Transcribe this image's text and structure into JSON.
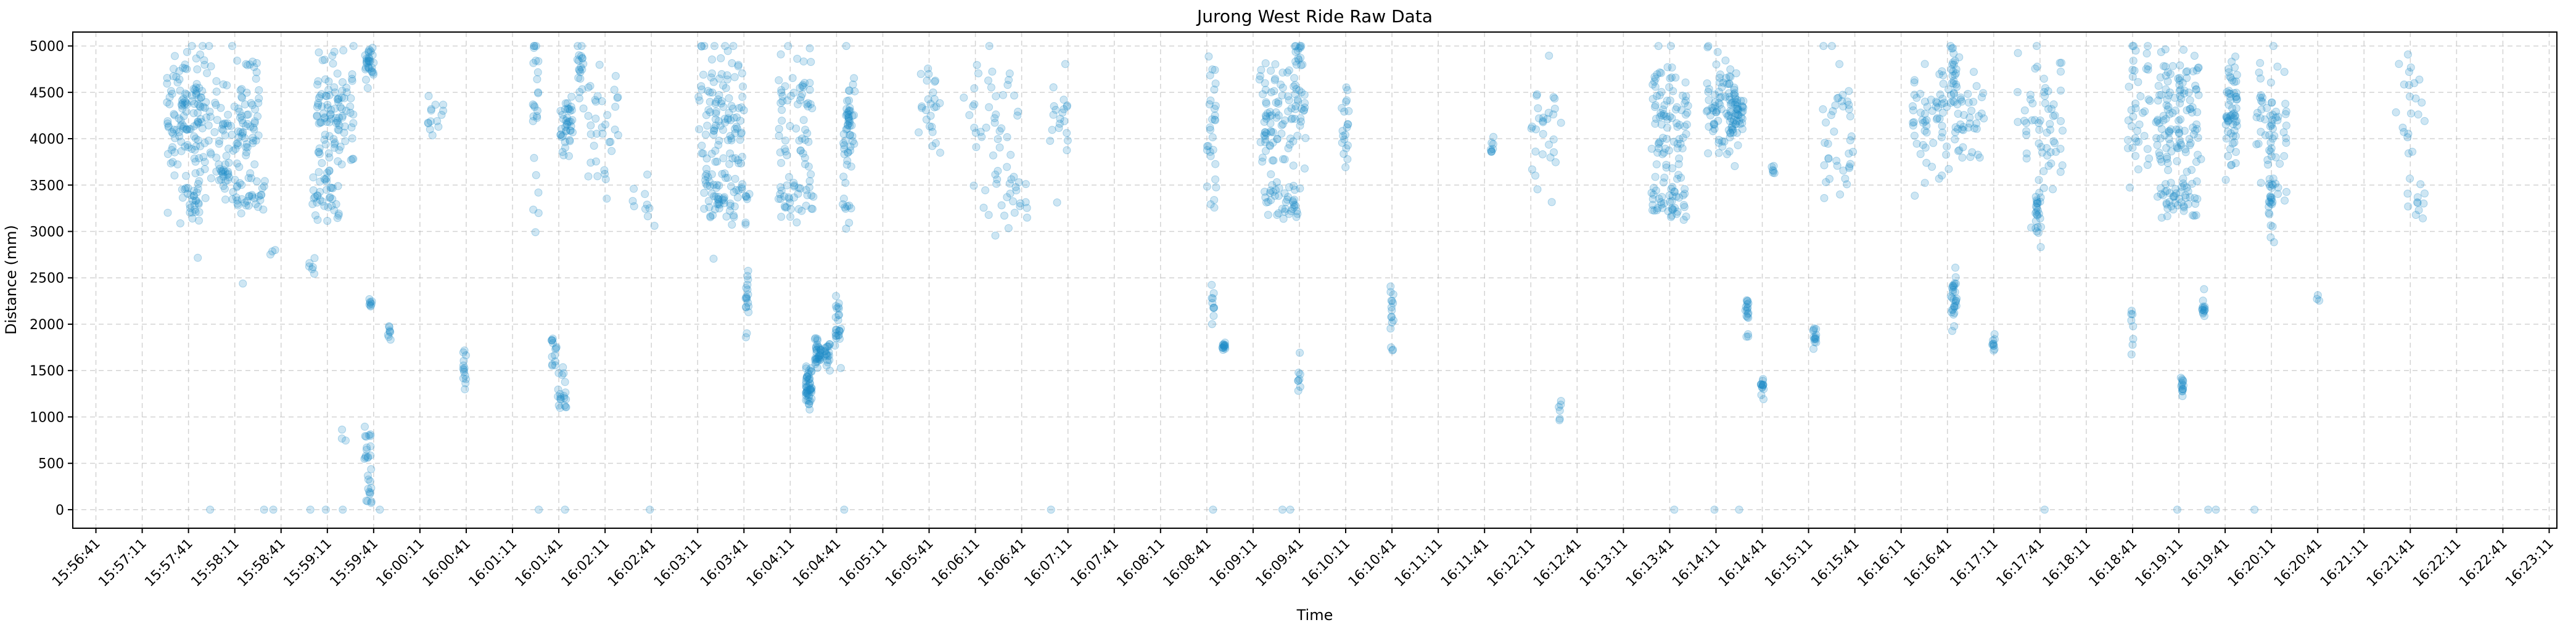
{
  "chart_data": {
    "type": "scatter",
    "title": "Jurong West Ride Raw Data",
    "xlabel": "Time",
    "ylabel": "Distance (mm)",
    "x_ticks": [
      "15:56:41",
      "15:57:11",
      "15:57:41",
      "15:58:11",
      "15:58:41",
      "15:59:11",
      "15:59:41",
      "16:00:11",
      "16:00:41",
      "16:01:11",
      "16:01:41",
      "16:02:11",
      "16:02:41",
      "16:03:11",
      "16:03:41",
      "16:04:11",
      "16:04:41",
      "16:05:11",
      "16:05:41",
      "16:06:11",
      "16:06:41",
      "16:07:11",
      "16:07:41",
      "16:08:11",
      "16:08:41",
      "16:09:11",
      "16:09:41",
      "16:10:11",
      "16:10:41",
      "16:11:11",
      "16:11:41",
      "16:12:11",
      "16:12:41",
      "16:13:11",
      "16:13:41",
      "16:14:11",
      "16:14:41",
      "16:15:11",
      "16:15:41",
      "16:16:11",
      "16:16:41",
      "16:17:11",
      "16:17:41",
      "16:18:11",
      "16:18:41",
      "16:19:11",
      "16:19:41",
      "16:20:11",
      "16:20:41",
      "16:21:11",
      "16:21:41",
      "16:22:11",
      "16:22:41",
      "16:23:11"
    ],
    "y_ticks": [
      0,
      500,
      1000,
      1500,
      2000,
      2500,
      3000,
      3500,
      4000,
      4500,
      5000
    ],
    "ylim": [
      -200,
      5150
    ],
    "xlim": [
      "15:56:26",
      "16:23:16"
    ],
    "grid": true,
    "marker_color": "#1f8cc8",
    "marker_alpha": 0.22,
    "clusters": [
      {
        "t": "15:57:41",
        "dt": 14,
        "y": 4250,
        "sy": 380,
        "n": 140
      },
      {
        "t": "15:57:44",
        "dt": 4,
        "y": 3350,
        "sy": 120,
        "n": 25
      },
      {
        "t": "15:58:11",
        "dt": 16,
        "y": 4200,
        "sy": 420,
        "n": 110
      },
      {
        "t": "15:58:05",
        "dt": 3,
        "y": 3600,
        "sy": 60,
        "n": 14
      },
      {
        "t": "15:58:20",
        "dt": 12,
        "y": 3350,
        "sy": 80,
        "n": 30
      },
      {
        "t": "15:58:36",
        "dt": 2,
        "y": 2750,
        "sy": 30,
        "n": 3
      },
      {
        "t": "15:59:01",
        "dt": 2,
        "y": 2650,
        "sy": 60,
        "n": 6
      },
      {
        "t": "15:59:16",
        "dt": 12,
        "y": 4250,
        "sy": 380,
        "n": 110
      },
      {
        "t": "15:59:10",
        "dt": 10,
        "y": 3350,
        "sy": 120,
        "n": 30
      },
      {
        "t": "15:59:38",
        "dt": 3,
        "y": 4800,
        "sy": 120,
        "n": 30
      },
      {
        "t": "15:59:37",
        "dt": 2,
        "y": 650,
        "sy": 150,
        "n": 14
      },
      {
        "t": "15:59:38",
        "dt": 2,
        "y": 280,
        "sy": 120,
        "n": 14
      },
      {
        "t": "15:59:39",
        "dt": 1,
        "y": 2230,
        "sy": 30,
        "n": 8
      },
      {
        "t": "15:59:51",
        "dt": 1,
        "y": 1930,
        "sy": 60,
        "n": 8
      },
      {
        "t": "15:59:21",
        "dt": 2,
        "y": 780,
        "sy": 30,
        "n": 3
      },
      {
        "t": "16:00:21",
        "dt": 6,
        "y": 4250,
        "sy": 180,
        "n": 14
      },
      {
        "t": "16:00:40",
        "dt": 1,
        "y": 1550,
        "sy": 120,
        "n": 14
      },
      {
        "t": "16:01:26",
        "dt": 2,
        "y": 4250,
        "sy": 500,
        "n": 25
      },
      {
        "t": "16:01:38",
        "dt": 2,
        "y": 1750,
        "sy": 120,
        "n": 14
      },
      {
        "t": "16:01:43",
        "dt": 3,
        "y": 1300,
        "sy": 200,
        "n": 20
      },
      {
        "t": "16:01:46",
        "dt": 4,
        "y": 4150,
        "sy": 200,
        "n": 40
      },
      {
        "t": "16:01:55",
        "dt": 2,
        "y": 4750,
        "sy": 200,
        "n": 20
      },
      {
        "t": "16:02:10",
        "dt": 10,
        "y": 4200,
        "sy": 350,
        "n": 35
      },
      {
        "t": "16:02:36",
        "dt": 8,
        "y": 3300,
        "sy": 150,
        "n": 10
      },
      {
        "t": "16:03:26",
        "dt": 15,
        "y": 4250,
        "sy": 400,
        "n": 110
      },
      {
        "t": "16:03:30",
        "dt": 15,
        "y": 3380,
        "sy": 120,
        "n": 60
      },
      {
        "t": "16:03:43",
        "dt": 1,
        "y": 2250,
        "sy": 130,
        "n": 18
      },
      {
        "t": "16:04:15",
        "dt": 12,
        "y": 4250,
        "sy": 400,
        "n": 60
      },
      {
        "t": "16:04:15",
        "dt": 12,
        "y": 3350,
        "sy": 120,
        "n": 35
      },
      {
        "t": "16:04:23",
        "dt": 2,
        "y": 1300,
        "sy": 100,
        "n": 50
      },
      {
        "t": "16:04:29",
        "dt": 2,
        "y": 1700,
        "sy": 80,
        "n": 35
      },
      {
        "t": "16:04:35",
        "dt": 2,
        "y": 1680,
        "sy": 100,
        "n": 20
      },
      {
        "t": "16:04:42",
        "dt": 2,
        "y": 2000,
        "sy": 180,
        "n": 25
      },
      {
        "t": "16:04:48",
        "dt": 3,
        "y": 3700,
        "sy": 400,
        "n": 30
      },
      {
        "t": "16:04:50",
        "dt": 3,
        "y": 4250,
        "sy": 250,
        "n": 30
      },
      {
        "t": "16:05:41",
        "dt": 8,
        "y": 4300,
        "sy": 300,
        "n": 25
      },
      {
        "t": "16:06:21",
        "dt": 18,
        "y": 4200,
        "sy": 400,
        "n": 40
      },
      {
        "t": "16:06:30",
        "dt": 15,
        "y": 3350,
        "sy": 150,
        "n": 25
      },
      {
        "t": "16:07:05",
        "dt": 6,
        "y": 4250,
        "sy": 300,
        "n": 20
      },
      {
        "t": "16:08:44",
        "dt": 3,
        "y": 4200,
        "sy": 400,
        "n": 30
      },
      {
        "t": "16:08:45",
        "dt": 1,
        "y": 2300,
        "sy": 150,
        "n": 10
      },
      {
        "t": "16:08:52",
        "dt": 1,
        "y": 1760,
        "sy": 30,
        "n": 14
      },
      {
        "t": "16:09:30",
        "dt": 15,
        "y": 4250,
        "sy": 300,
        "n": 100
      },
      {
        "t": "16:09:30",
        "dt": 12,
        "y": 3330,
        "sy": 100,
        "n": 40
      },
      {
        "t": "16:09:40",
        "dt": 3,
        "y": 4900,
        "sy": 80,
        "n": 15
      },
      {
        "t": "16:09:41",
        "dt": 1,
        "y": 1500,
        "sy": 200,
        "n": 8
      },
      {
        "t": "16:10:11",
        "dt": 3,
        "y": 4100,
        "sy": 200,
        "n": 20
      },
      {
        "t": "16:10:41",
        "dt": 1,
        "y": 2150,
        "sy": 200,
        "n": 16
      },
      {
        "t": "16:11:46",
        "dt": 1,
        "y": 3900,
        "sy": 60,
        "n": 8
      },
      {
        "t": "16:12:21",
        "dt": 10,
        "y": 4150,
        "sy": 300,
        "n": 30
      },
      {
        "t": "16:12:30",
        "dt": 1,
        "y": 1100,
        "sy": 60,
        "n": 6
      },
      {
        "t": "16:13:41",
        "dt": 12,
        "y": 4250,
        "sy": 350,
        "n": 90
      },
      {
        "t": "16:13:41",
        "dt": 12,
        "y": 3330,
        "sy": 100,
        "n": 40
      },
      {
        "t": "16:14:15",
        "dt": 10,
        "y": 4300,
        "sy": 300,
        "n": 80
      },
      {
        "t": "16:14:25",
        "dt": 4,
        "y": 4250,
        "sy": 120,
        "n": 40
      },
      {
        "t": "16:14:31",
        "dt": 1,
        "y": 2100,
        "sy": 100,
        "n": 18
      },
      {
        "t": "16:14:41",
        "dt": 1,
        "y": 1320,
        "sy": 50,
        "n": 14
      },
      {
        "t": "16:14:48",
        "dt": 1,
        "y": 3650,
        "sy": 40,
        "n": 6
      },
      {
        "t": "16:15:15",
        "dt": 1,
        "y": 1900,
        "sy": 100,
        "n": 14
      },
      {
        "t": "16:15:30",
        "dt": 10,
        "y": 4100,
        "sy": 400,
        "n": 40
      },
      {
        "t": "16:16:30",
        "dt": 12,
        "y": 4250,
        "sy": 300,
        "n": 60
      },
      {
        "t": "16:16:45",
        "dt": 2,
        "y": 4700,
        "sy": 200,
        "n": 25
      },
      {
        "t": "16:16:45",
        "dt": 2,
        "y": 2250,
        "sy": 150,
        "n": 30
      },
      {
        "t": "16:16:55",
        "dt": 10,
        "y": 4250,
        "sy": 300,
        "n": 40
      },
      {
        "t": "16:17:11",
        "dt": 1,
        "y": 1800,
        "sy": 60,
        "n": 10
      },
      {
        "t": "16:17:41",
        "dt": 15,
        "y": 4200,
        "sy": 400,
        "n": 60
      },
      {
        "t": "16:17:40",
        "dt": 2,
        "y": 3200,
        "sy": 150,
        "n": 25
      },
      {
        "t": "16:18:45",
        "dt": 8,
        "y": 4250,
        "sy": 400,
        "n": 40
      },
      {
        "t": "16:18:41",
        "dt": 1,
        "y": 2000,
        "sy": 200,
        "n": 8
      },
      {
        "t": "16:19:11",
        "dt": 15,
        "y": 4200,
        "sy": 400,
        "n": 120
      },
      {
        "t": "16:19:11",
        "dt": 12,
        "y": 3350,
        "sy": 100,
        "n": 45
      },
      {
        "t": "16:19:13",
        "dt": 1,
        "y": 1320,
        "sy": 80,
        "n": 14
      },
      {
        "t": "16:19:27",
        "dt": 1,
        "y": 2150,
        "sy": 80,
        "n": 14
      },
      {
        "t": "16:19:45",
        "dt": 4,
        "y": 4350,
        "sy": 300,
        "n": 60
      },
      {
        "t": "16:20:11",
        "dt": 10,
        "y": 4100,
        "sy": 400,
        "n": 60
      },
      {
        "t": "16:20:11",
        "dt": 2,
        "y": 3300,
        "sy": 300,
        "n": 25
      },
      {
        "t": "16:20:41",
        "dt": 1,
        "y": 2300,
        "sy": 30,
        "n": 3
      },
      {
        "t": "16:21:41",
        "dt": 10,
        "y": 4200,
        "sy": 400,
        "n": 25
      },
      {
        "t": "16:21:45",
        "dt": 6,
        "y": 3300,
        "sy": 100,
        "n": 8
      }
    ],
    "zero_points": [
      "15:57:55",
      "15:58:30",
      "15:58:36",
      "15:59:00",
      "15:59:10",
      "15:59:21",
      "15:59:45",
      "16:01:28",
      "16:01:45",
      "16:02:40",
      "16:04:46",
      "16:07:00",
      "16:08:45",
      "16:09:30",
      "16:09:35",
      "16:13:44",
      "16:14:10",
      "16:14:26",
      "16:17:44",
      "16:19:10",
      "16:19:30",
      "16:19:35",
      "16:20:00"
    ]
  }
}
